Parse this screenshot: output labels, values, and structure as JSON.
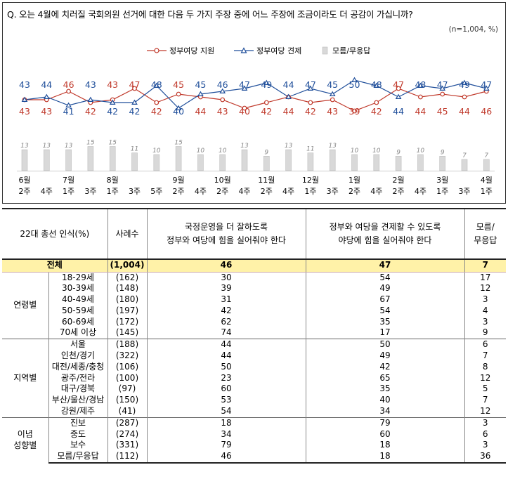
{
  "question": "Q. 오는 4월에 치러질 국회의원 선거에 대한 다음 두 가지 주장 중에 어느 주장에 조금이라도 더 공감이 가십니까?",
  "sample_note": "(n=1,004, %)",
  "legend": {
    "support": "정부여당 지원",
    "check": "정부여당 견제",
    "dk": "모름/무응답"
  },
  "colors": {
    "support": "#c0392b",
    "check": "#1f4e9a",
    "dk_bar": "#d9d9d9",
    "dk_label": "#888888"
  },
  "chart_data": {
    "type": "line",
    "x": [
      [
        "6월",
        "2주"
      ],
      [
        "",
        "4주"
      ],
      [
        "7월",
        "1주"
      ],
      [
        "",
        "3주"
      ],
      [
        "8월",
        "1주"
      ],
      [
        "",
        "3주"
      ],
      [
        "",
        "5주"
      ],
      [
        "9월",
        "2주"
      ],
      [
        "",
        "4주"
      ],
      [
        "10월",
        "2주"
      ],
      [
        "",
        "4주"
      ],
      [
        "11월",
        "2주"
      ],
      [
        "",
        "4주"
      ],
      [
        "12월",
        "1주"
      ],
      [
        "",
        "3주"
      ],
      [
        "1월",
        "2주"
      ],
      [
        "",
        "4주"
      ],
      [
        "2월",
        "2주"
      ],
      [
        "",
        "4주"
      ],
      [
        "3월",
        "1주"
      ],
      [
        "",
        "3주"
      ],
      [
        "4월",
        "1주"
      ]
    ],
    "series": [
      {
        "name": "정부여당 지원",
        "values": [
          43,
          43,
          46,
          42,
          43,
          47,
          42,
          45,
          44,
          43,
          40,
          42,
          44,
          42,
          43,
          39,
          42,
          47,
          44,
          45,
          44,
          46
        ]
      },
      {
        "name": "정부여당 견제",
        "values": [
          43,
          44,
          41,
          43,
          42,
          42,
          48,
          40,
          45,
          46,
          47,
          49,
          44,
          47,
          45,
          50,
          48,
          44,
          48,
          47,
          49,
          47
        ]
      },
      {
        "name": "모름/무응답",
        "type": "bar",
        "values": [
          13,
          13,
          13,
          15,
          15,
          11,
          10,
          15,
          10,
          10,
          13,
          9,
          13,
          11,
          13,
          10,
          10,
          9,
          10,
          9,
          7,
          7
        ]
      }
    ]
  },
  "table": {
    "headers": {
      "category": "22대 총선 인식(%)",
      "n": "사례수",
      "support": [
        "국정운영을 더 잘하도록",
        "정부와 여당에 힘을 실어줘야 한다"
      ],
      "check": [
        "정부와 여당을 견제할 수 있도록",
        "야당에 힘을 실어줘야 한다"
      ],
      "dk": [
        "모름/",
        "무응답"
      ]
    },
    "total": {
      "label": "전체",
      "n": "(1,004)",
      "support": "46",
      "check": "47",
      "dk": "7"
    },
    "groups": [
      {
        "label": [
          "연령별"
        ],
        "rows": [
          {
            "label": "18-29세",
            "n": "(162)",
            "support": "30",
            "check": "54",
            "dk": "17"
          },
          {
            "label": "30-39세",
            "n": "(148)",
            "support": "39",
            "check": "49",
            "dk": "12"
          },
          {
            "label": "40-49세",
            "n": "(180)",
            "support": "31",
            "check": "67",
            "dk": "3"
          },
          {
            "label": "50-59세",
            "n": "(197)",
            "support": "42",
            "check": "54",
            "dk": "4"
          },
          {
            "label": "60-69세",
            "n": "(172)",
            "support": "62",
            "check": "35",
            "dk": "3"
          },
          {
            "label": "70세 이상",
            "n": "(145)",
            "support": "74",
            "check": "17",
            "dk": "9"
          }
        ]
      },
      {
        "label": [
          "지역별"
        ],
        "rows": [
          {
            "label": "서울",
            "n": "(188)",
            "support": "44",
            "check": "50",
            "dk": "6"
          },
          {
            "label": "인천/경기",
            "n": "(322)",
            "support": "44",
            "check": "49",
            "dk": "7"
          },
          {
            "label": "대전/세종/충청",
            "n": "(106)",
            "support": "50",
            "check": "42",
            "dk": "8"
          },
          {
            "label": "광주/전라",
            "n": "(100)",
            "support": "23",
            "check": "65",
            "dk": "12"
          },
          {
            "label": "대구/경북",
            "n": "(97)",
            "support": "60",
            "check": "35",
            "dk": "5"
          },
          {
            "label": "부산/울산/경남",
            "n": "(150)",
            "support": "53",
            "check": "40",
            "dk": "7"
          },
          {
            "label": "강원/제주",
            "n": "(41)",
            "support": "54",
            "check": "34",
            "dk": "12"
          }
        ]
      },
      {
        "label": [
          "이념",
          "성향별"
        ],
        "rows": [
          {
            "label": "진보",
            "n": "(287)",
            "support": "18",
            "check": "79",
            "dk": "3"
          },
          {
            "label": "중도",
            "n": "(274)",
            "support": "34",
            "check": "60",
            "dk": "6"
          },
          {
            "label": "보수",
            "n": "(331)",
            "support": "79",
            "check": "18",
            "dk": "3"
          },
          {
            "label": "모름/무응답",
            "n": "(112)",
            "support": "46",
            "check": "18",
            "dk": "36"
          }
        ]
      }
    ]
  }
}
